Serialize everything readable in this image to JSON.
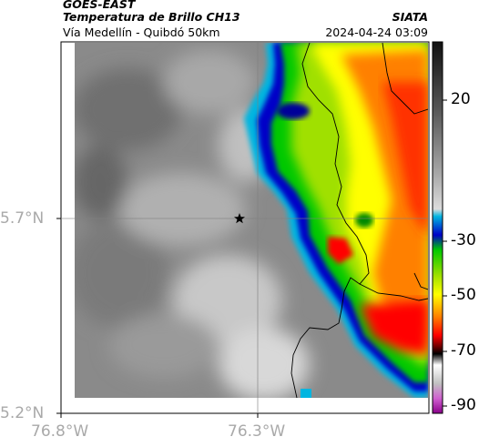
{
  "header": {
    "satellite": "GOES-EAST",
    "product": "Temperatura de Brillo CH13",
    "region": "Vía Medellín - Quibdó 50km",
    "source": "SIATA",
    "datetime": "2024-04-24 03:09"
  },
  "axes": {
    "lat_labels": [
      "5.7°N",
      "5.2°N"
    ],
    "lon_labels": [
      "76.8°W",
      "76.3°W"
    ]
  },
  "colorbar": {
    "ticks": [
      "20",
      "-30",
      "-50",
      "-70",
      "-90"
    ],
    "palette": [
      "#111111",
      "#444444",
      "#888888",
      "#bbbbbb",
      "#e0e0e0",
      "#00b5e0",
      "#0000c8",
      "#00c800",
      "#a0e000",
      "#ffff00",
      "#ff8000",
      "#ff0000",
      "#700000",
      "#000000",
      "#ffffff",
      "#d060d0",
      "#8a008a"
    ]
  },
  "map": {
    "marker": "location-star",
    "colors": {
      "cold_cloud": "#ff0000",
      "warm_surface": "#808080",
      "gridline": "#808080",
      "coastline": "#000000"
    }
  }
}
